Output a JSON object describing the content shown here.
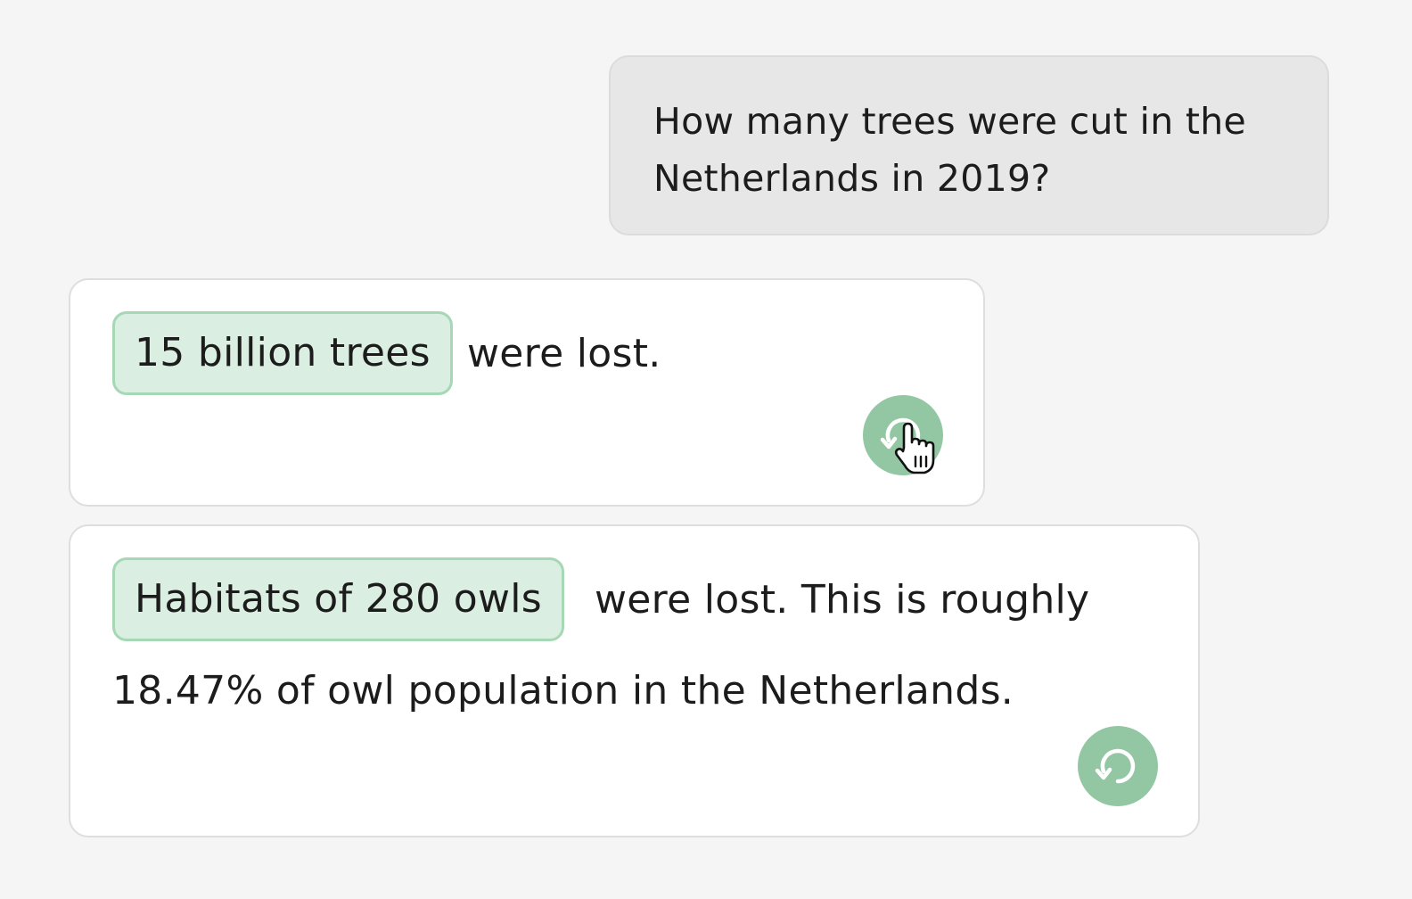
{
  "question": {
    "line1": "How many trees were cut in the",
    "line2": "Netherlands in 2019?"
  },
  "answers": [
    {
      "chip": "15 billion trees",
      "text": "were lost.",
      "refresh_icon": "refresh-icon"
    },
    {
      "chip": "Habitats of 280 owls",
      "text_line1": "were lost. This is roughly",
      "text_line2": "18.47% of owl population in the Netherlands.",
      "refresh_icon": "refresh-icon"
    }
  ],
  "colors": {
    "background": "#f5f5f5",
    "user_bubble": "#e7e7e7",
    "chip_fill": "#dbeee2",
    "chip_border": "#a6d8b6",
    "accent_green": "#93c7a3"
  },
  "cursor_icon": "hand-pointer-icon"
}
